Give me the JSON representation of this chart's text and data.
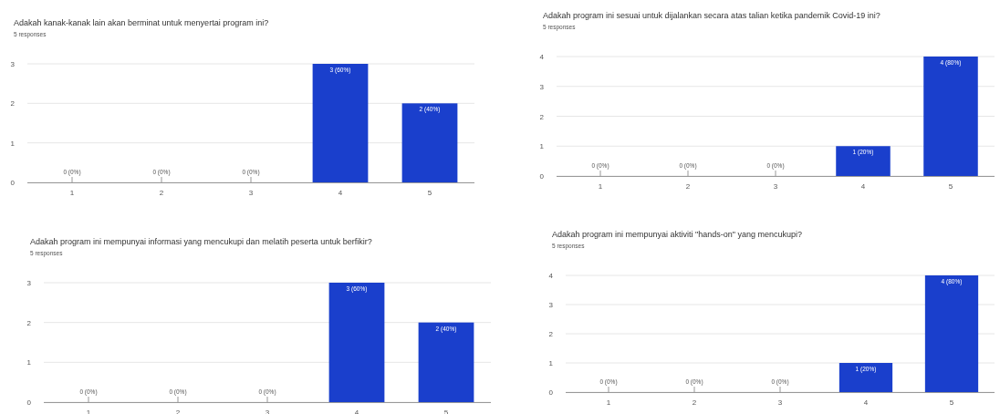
{
  "chart_data": [
    {
      "type": "bar",
      "title": "Adakah kanak-kanak lain akan berminat untuk menyertai program ini?",
      "subtitle": "5 responses",
      "categories": [
        "1",
        "2",
        "3",
        "4",
        "5"
      ],
      "values": [
        0,
        0,
        0,
        3,
        2
      ],
      "value_labels": [
        "0 (0%)",
        "0 (0%)",
        "0 (0%)",
        "3 (60%)",
        "2 (40%)"
      ],
      "color": "#1a3fcc",
      "ylim": [
        0,
        3
      ],
      "yticks": [
        0,
        1,
        2,
        3
      ],
      "grid": "y"
    },
    {
      "type": "bar",
      "title": "Adakah program ini sesuai untuk dijalankan secara atas talian ketika pandemik Covid-19 ini?",
      "subtitle": "5 responses",
      "categories": [
        "1",
        "2",
        "3",
        "4",
        "5"
      ],
      "values": [
        0,
        0,
        0,
        1,
        4
      ],
      "value_labels": [
        "0 (0%)",
        "0 (0%)",
        "0 (0%)",
        "1 (20%)",
        "4 (80%)"
      ],
      "color": "#1a3fcc",
      "ylim": [
        0,
        4
      ],
      "yticks": [
        0,
        1,
        2,
        3,
        4
      ],
      "grid": "y"
    },
    {
      "type": "bar",
      "title": "Adakah program ini mempunyai informasi yang mencukupi dan melatih peserta untuk berfikir?",
      "subtitle": "5 responses",
      "categories": [
        "1",
        "2",
        "3",
        "4",
        "5"
      ],
      "values": [
        0,
        0,
        0,
        3,
        2
      ],
      "value_labels": [
        "0 (0%)",
        "0 (0%)",
        "0 (0%)",
        "3 (60%)",
        "2 (40%)"
      ],
      "color": "#1a3fcc",
      "ylim": [
        0,
        3
      ],
      "yticks": [
        0,
        1,
        2,
        3
      ],
      "grid": "y"
    },
    {
      "type": "bar",
      "title": "Adakah program ini mempunyai aktiviti \"hands-on\" yang mencukupi?",
      "subtitle": "5 responses",
      "categories": [
        "1",
        "2",
        "3",
        "4",
        "5"
      ],
      "values": [
        0,
        0,
        0,
        1,
        4
      ],
      "value_labels": [
        "0 (0%)",
        "0 (0%)",
        "0 (0%)",
        "1 (20%)",
        "4 (80%)"
      ],
      "color": "#1a3fcc",
      "ylim": [
        0,
        4
      ],
      "yticks": [
        0,
        1,
        2,
        3,
        4
      ],
      "grid": "y"
    }
  ]
}
